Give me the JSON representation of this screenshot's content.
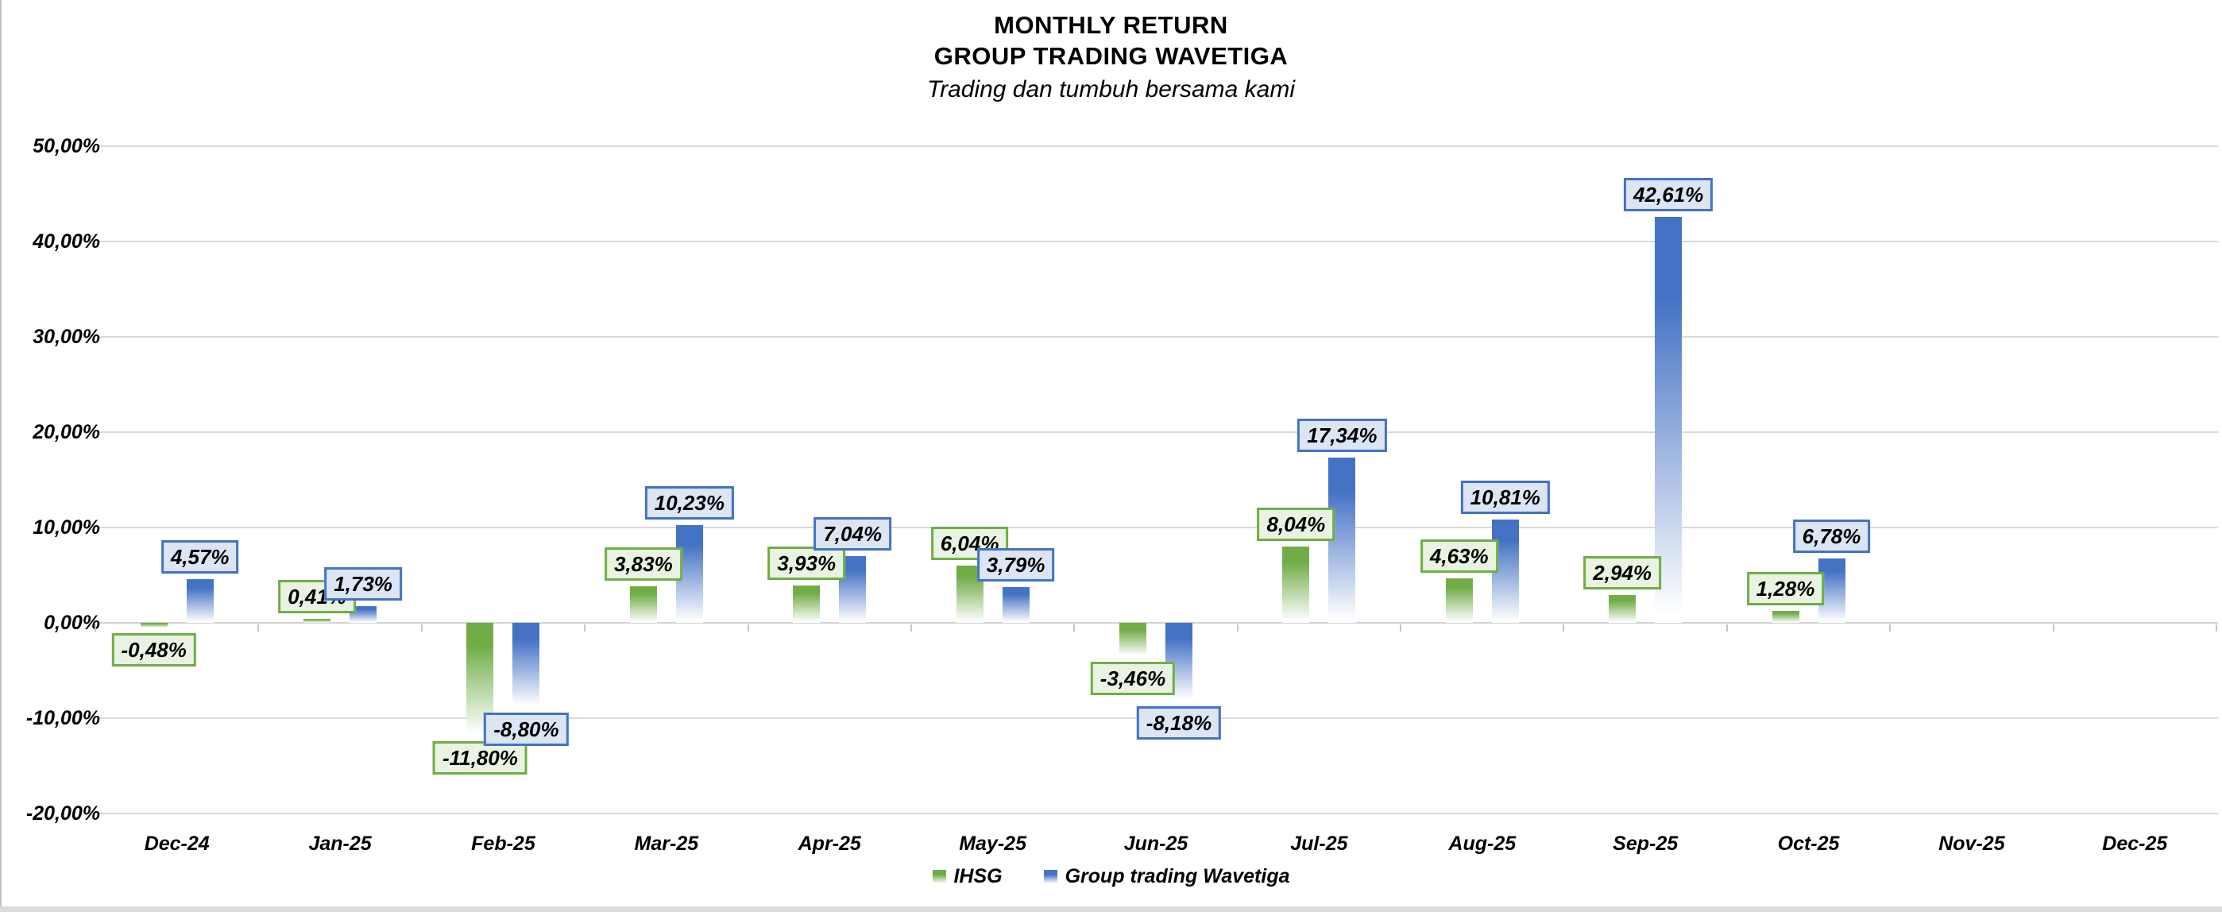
{
  "chart_data": {
    "type": "bar",
    "title_lines": [
      "MONTHLY RETURN",
      "GROUP TRADING WAVETIGA"
    ],
    "subtitle": "Trading dan tumbuh bersama kami",
    "categories": [
      "Dec-24",
      "Jan-25",
      "Feb-25",
      "Mar-25",
      "Apr-25",
      "May-25",
      "Jun-25",
      "Jul-25",
      "Aug-25",
      "Sep-25",
      "Oct-25",
      "Nov-25",
      "Dec-25"
    ],
    "series": [
      {
        "name": "IHSG",
        "color": "#70AD47",
        "label_fill": "#E9F3E1",
        "values": [
          -0.48,
          0.41,
          -11.8,
          3.83,
          3.93,
          6.04,
          -3.46,
          8.04,
          4.63,
          2.94,
          1.28,
          null,
          null
        ],
        "point_labels": [
          "-0,48%",
          "0,41%",
          "-11,80%",
          "3,83%",
          "3,93%",
          "6,04%",
          "-3,46%",
          "8,04%",
          "4,63%",
          "2,94%",
          "1,28%",
          "",
          ""
        ]
      },
      {
        "name": "Group trading Wavetiga",
        "color": "#4472C4",
        "label_fill": "#DCE5F4",
        "values": [
          4.57,
          1.73,
          -8.8,
          10.23,
          7.04,
          3.79,
          -8.18,
          17.34,
          10.81,
          42.61,
          6.78,
          null,
          null
        ],
        "point_labels": [
          "4,57%",
          "1,73%",
          "-8,80%",
          "10,23%",
          "7,04%",
          "3,79%",
          "-8,18%",
          "17,34%",
          "10,81%",
          "42,61%",
          "6,78%",
          "",
          ""
        ]
      }
    ],
    "y_axis": {
      "tick_labels": [
        "50,00%",
        "40,00%",
        "30,00%",
        "20,00%",
        "10,00%",
        "0,00%",
        "-10,00%",
        "-20,00%"
      ],
      "tick_values": [
        50,
        40,
        30,
        20,
        10,
        0,
        -10,
        -20
      ],
      "min": -20,
      "max": 50
    },
    "grid": true,
    "legend_position": "bottom-center"
  }
}
